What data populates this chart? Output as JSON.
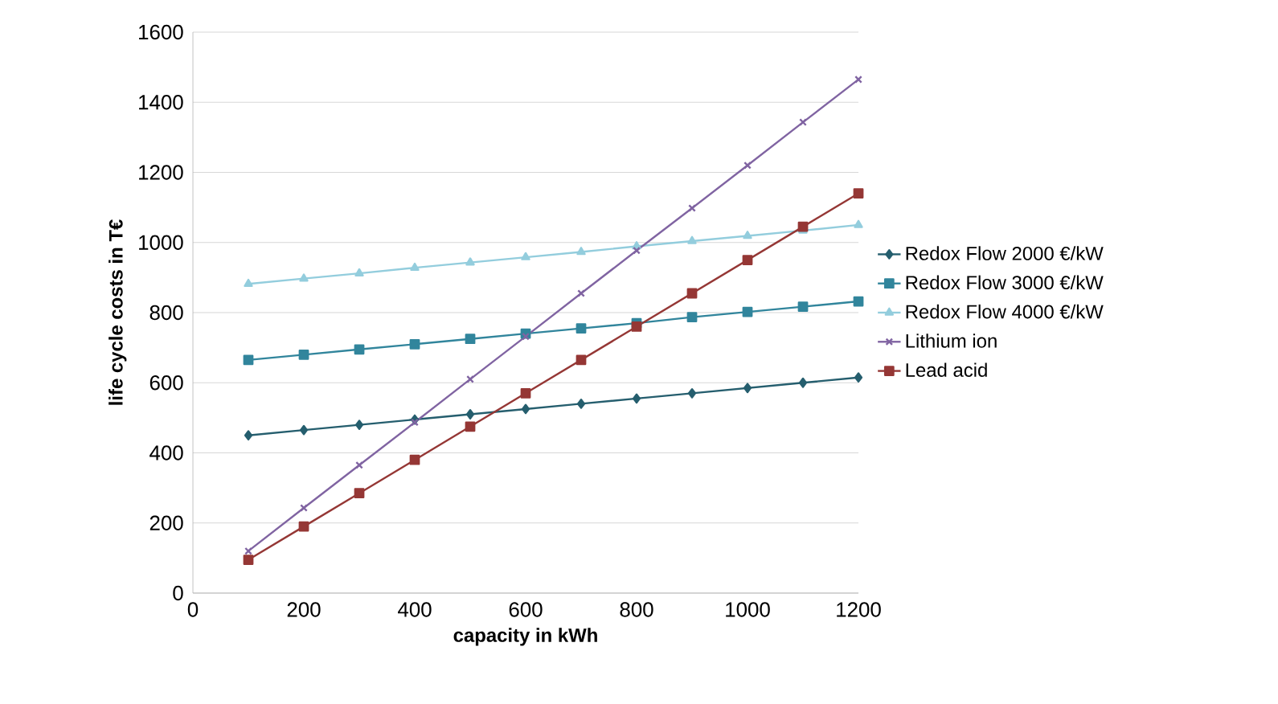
{
  "chart_data": {
    "type": "line",
    "xlabel": "capacity in kWh",
    "ylabel": "life cycle costs in T€",
    "x": [
      100,
      200,
      300,
      400,
      500,
      600,
      700,
      800,
      900,
      1000,
      1100,
      1200
    ],
    "xlim": [
      0,
      1200
    ],
    "xticks": [
      0,
      200,
      400,
      600,
      800,
      1000,
      1200
    ],
    "ylim": [
      0,
      1600
    ],
    "yticks": [
      0,
      200,
      400,
      600,
      800,
      1000,
      1200,
      1400,
      1600
    ],
    "grid": "y",
    "legend": "right",
    "series": [
      {
        "name": "Redox Flow 2000 €/kW",
        "color": "#255e6e",
        "marker": "diamond",
        "values": [
          450,
          465,
          480,
          495,
          510,
          525,
          540,
          555,
          570,
          585,
          600,
          615
        ]
      },
      {
        "name": "Redox Flow 3000 €/kW",
        "color": "#31859c",
        "marker": "square",
        "values": [
          665,
          680,
          695,
          710,
          725,
          740,
          755,
          770,
          787,
          802,
          817,
          832
        ]
      },
      {
        "name": "Redox Flow 4000 €/kW",
        "color": "#93cddd",
        "marker": "triangle",
        "values": [
          882,
          897,
          912,
          928,
          943,
          958,
          973,
          989,
          1004,
          1019,
          1034,
          1050
        ]
      },
      {
        "name": "Lithium ion",
        "color": "#8064a2",
        "marker": "cross",
        "values": [
          120,
          243,
          365,
          487,
          610,
          732,
          855,
          977,
          1098,
          1220,
          1343,
          1465
        ]
      },
      {
        "name": "Lead acid",
        "color": "#953735",
        "marker": "square",
        "values": [
          95,
          190,
          285,
          380,
          475,
          570,
          665,
          760,
          855,
          950,
          1045,
          1140
        ]
      }
    ]
  }
}
